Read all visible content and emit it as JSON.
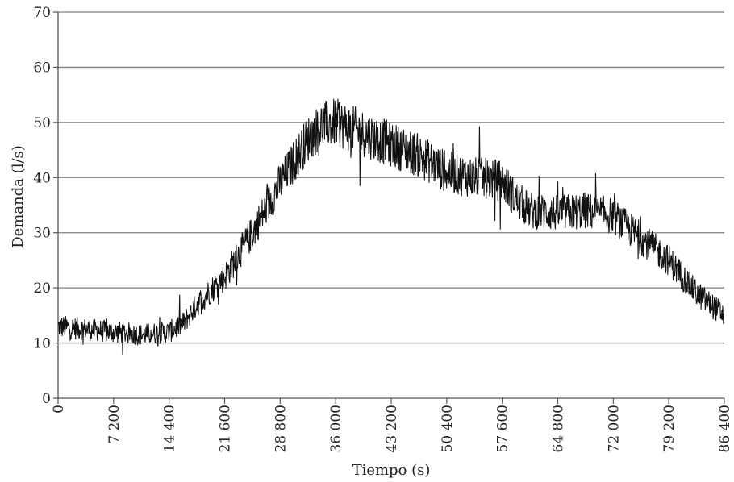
{
  "chart_data": {
    "type": "line",
    "title": "",
    "xlabel": "Tiempo (s)",
    "ylabel": "Demanda (l/s)",
    "xlim": [
      0,
      86400
    ],
    "ylim": [
      0,
      70
    ],
    "x_ticks": [
      0,
      7200,
      14400,
      21600,
      28800,
      36000,
      43200,
      50400,
      57600,
      64800,
      72000,
      79200,
      86400
    ],
    "x_tick_labels": [
      "0",
      "7 200",
      "14 400",
      "21 600",
      "28 800",
      "36 000",
      "43 200",
      "50 400",
      "57 600",
      "64 800",
      "72 000",
      "79 200",
      "86 400"
    ],
    "y_ticks": [
      0,
      10,
      20,
      30,
      40,
      50,
      60,
      70
    ],
    "y_tick_labels": [
      "0",
      "10",
      "20",
      "30",
      "40",
      "50",
      "60",
      "70"
    ],
    "grid": "horizontal",
    "legend": "none",
    "colors": {
      "line": "#111111",
      "grid": "#7f7f7f",
      "axis": "#555555"
    },
    "series": [
      {
        "noise_amplitude": 2.5,
        "x": [
          0,
          3600,
          7200,
          10800,
          14400,
          16200,
          18000,
          21600,
          25200,
          28800,
          30600,
          32400,
          34200,
          36000,
          39600,
          43200,
          46800,
          50400,
          54000,
          57600,
          59400,
          61200,
          64800,
          68400,
          72000,
          75600,
          79200,
          82800,
          86400
        ],
        "values": [
          13,
          12.5,
          12,
          11.5,
          12,
          13.5,
          17,
          22,
          30,
          39,
          43,
          47,
          49.5,
          50,
          48,
          46,
          44,
          41,
          40,
          39.5,
          36,
          34,
          33.5,
          34,
          33,
          29,
          25,
          19,
          15
        ]
      }
    ]
  }
}
